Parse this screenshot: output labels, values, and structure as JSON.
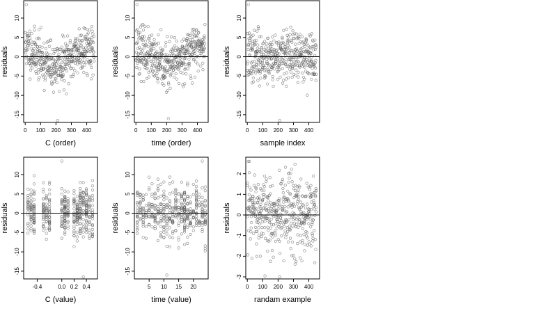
{
  "chart_data": [
    {
      "type": "scatter",
      "xlabel": "C (order)",
      "ylabel": "residuals",
      "xlim": [
        -10,
        470
      ],
      "ylim": [
        -17,
        14.5
      ],
      "xticks": [
        0,
        100,
        200,
        300,
        400
      ],
      "xtick_labels": [
        "0",
        "100",
        "200",
        "300",
        "400"
      ],
      "yticks": [
        -15,
        -10,
        -5,
        0,
        5,
        10
      ],
      "ytick_labels": [
        "-15",
        "-10",
        "-5",
        "0",
        "5",
        "10"
      ],
      "reference_line_y": 0,
      "n_points": 450,
      "x_range": [
        0,
        449
      ],
      "y_range": [
        -16.5,
        13.5
      ],
      "pattern": "order",
      "seed": 11
    },
    {
      "type": "scatter",
      "xlabel": "time (order)",
      "ylabel": "residuals",
      "xlim": [
        -10,
        470
      ],
      "ylim": [
        -17,
        14.5
      ],
      "xticks": [
        0,
        100,
        200,
        300,
        400
      ],
      "xtick_labels": [
        "0",
        "100",
        "200",
        "300",
        "400"
      ],
      "yticks": [
        -15,
        -10,
        -5,
        0,
        5,
        10
      ],
      "ytick_labels": [
        "-15",
        "-10",
        "-5",
        "0",
        "5",
        "10"
      ],
      "reference_line_y": 0,
      "n_points": 450,
      "x_range": [
        0,
        449
      ],
      "y_range": [
        -16,
        13.5
      ],
      "pattern": "order",
      "seed": 23
    },
    {
      "type": "scatter",
      "xlabel": "sample index",
      "ylabel": "residuals",
      "xlim": [
        -10,
        470
      ],
      "ylim": [
        -17,
        14.5
      ],
      "xticks": [
        0,
        100,
        200,
        300,
        400
      ],
      "xtick_labels": [
        "0",
        "100",
        "200",
        "300",
        "400"
      ],
      "yticks": [
        -15,
        -10,
        -5,
        0,
        5,
        10
      ],
      "ytick_labels": [
        "-15",
        "-10",
        "-5",
        "0",
        "5",
        "10"
      ],
      "reference_line_y": 0,
      "n_points": 450,
      "x_range": [
        0,
        449
      ],
      "y_range": [
        -16.5,
        13.5
      ],
      "pattern": "random",
      "seed": 37
    },
    {
      "type": "scatter",
      "xlabel": "C (value)",
      "ylabel": "residuals",
      "xlim": [
        -0.62,
        0.58
      ],
      "ylim": [
        -17,
        14.5
      ],
      "xticks": [
        -0.4,
        0.0,
        0.2,
        0.4
      ],
      "xtick_labels": [
        "-0.4",
        "0.0",
        "0.2",
        "0.4"
      ],
      "yticks": [
        -15,
        -10,
        -5,
        0,
        5,
        10
      ],
      "ytick_labels": [
        "-15",
        "-10",
        "-5",
        "0",
        "5",
        "10"
      ],
      "reference_line_y": 0,
      "n_points": 450,
      "x_range": [
        -0.58,
        0.55
      ],
      "y_range": [
        -16.5,
        13.5
      ],
      "pattern": "discrete",
      "x_levels": [
        -0.55,
        -0.5,
        -0.45,
        -0.3,
        -0.25,
        -0.2,
        0.0,
        0.05,
        0.1,
        0.2,
        0.25,
        0.3,
        0.35,
        0.4,
        0.45,
        0.5
      ],
      "seed": 53
    },
    {
      "type": "scatter",
      "xlabel": "time (value)",
      "ylabel": "residuals",
      "xlim": [
        0,
        25
      ],
      "ylim": [
        -17,
        14.5
      ],
      "xticks": [
        5,
        10,
        15,
        20
      ],
      "xtick_labels": [
        "5",
        "10",
        "15",
        "20"
      ],
      "yticks": [
        -15,
        -10,
        -5,
        0,
        5,
        10
      ],
      "ytick_labels": [
        "-15",
        "-10",
        "-5",
        "0",
        "5",
        "10"
      ],
      "reference_line_y": 0,
      "n_points": 450,
      "x_range": [
        1,
        24
      ],
      "y_range": [
        -16,
        13.5
      ],
      "pattern": "discrete",
      "x_levels": [
        1,
        2,
        3,
        4,
        5,
        6,
        7,
        8,
        9,
        10,
        11,
        12,
        13,
        14,
        15,
        16,
        17,
        18,
        19,
        20,
        21,
        22,
        23,
        24
      ],
      "seed": 71
    },
    {
      "type": "scatter",
      "xlabel": "randam example",
      "ylabel": "residuals",
      "xlim": [
        -10,
        470
      ],
      "ylim": [
        -3.1,
        2.8
      ],
      "xticks": [
        0,
        100,
        200,
        300,
        400
      ],
      "xtick_labels": [
        "0",
        "100",
        "200",
        "300",
        "400"
      ],
      "yticks": [
        -3,
        -2,
        -1,
        0,
        1,
        2
      ],
      "ytick_labels": [
        "-3",
        "-2",
        "-1",
        "0",
        "1",
        "2"
      ],
      "reference_line_y": 0,
      "n_points": 450,
      "x_range": [
        0,
        449
      ],
      "y_range": [
        -3,
        2.6
      ],
      "pattern": "normal",
      "seed": 97
    }
  ]
}
